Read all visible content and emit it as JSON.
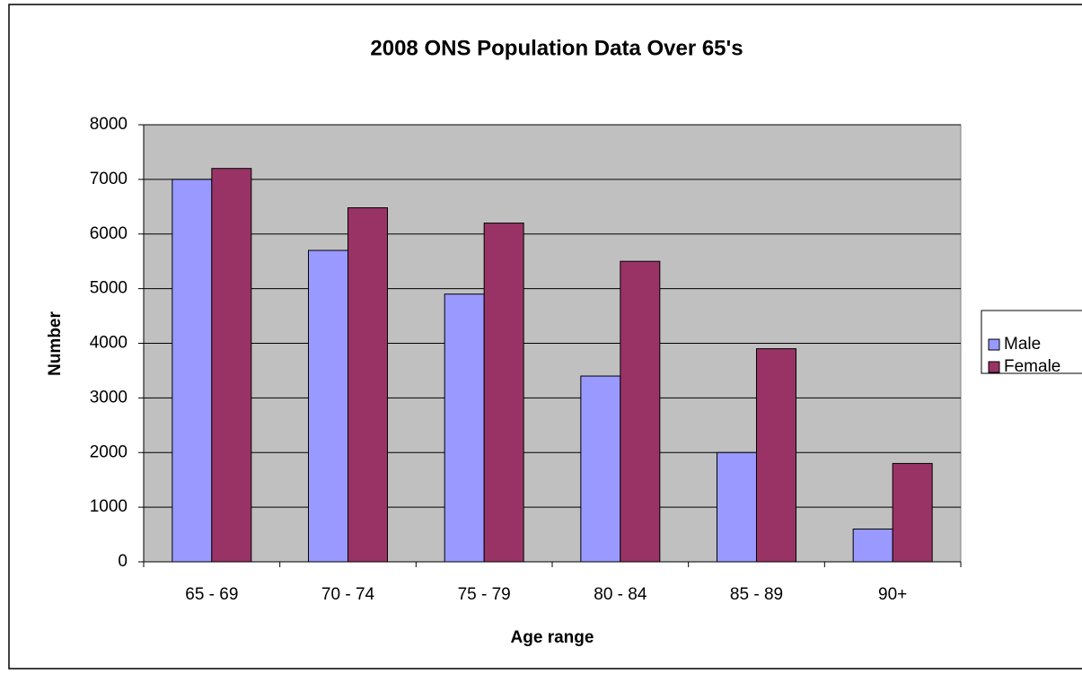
{
  "chart_data": {
    "type": "bar",
    "title": "2008 ONS Population Data Over 65's",
    "x_label": "Age range",
    "y_label": "Number",
    "categories": [
      "65 - 69",
      "70 - 74",
      "75 - 79",
      "80 - 84",
      "85 - 89",
      "90+"
    ],
    "series": [
      {
        "name": "Male",
        "color": "#9999ff",
        "values": [
          7000,
          5700,
          4900,
          3400,
          2000,
          600
        ]
      },
      {
        "name": "Female",
        "color": "#993366",
        "values": [
          7200,
          6480,
          6200,
          5500,
          3900,
          1800
        ]
      }
    ],
    "ylim": [
      0,
      8000
    ],
    "yticks": [
      0,
      1000,
      2000,
      3000,
      4000,
      5000,
      6000,
      7000,
      8000
    ],
    "grid": true,
    "legend": "right"
  }
}
